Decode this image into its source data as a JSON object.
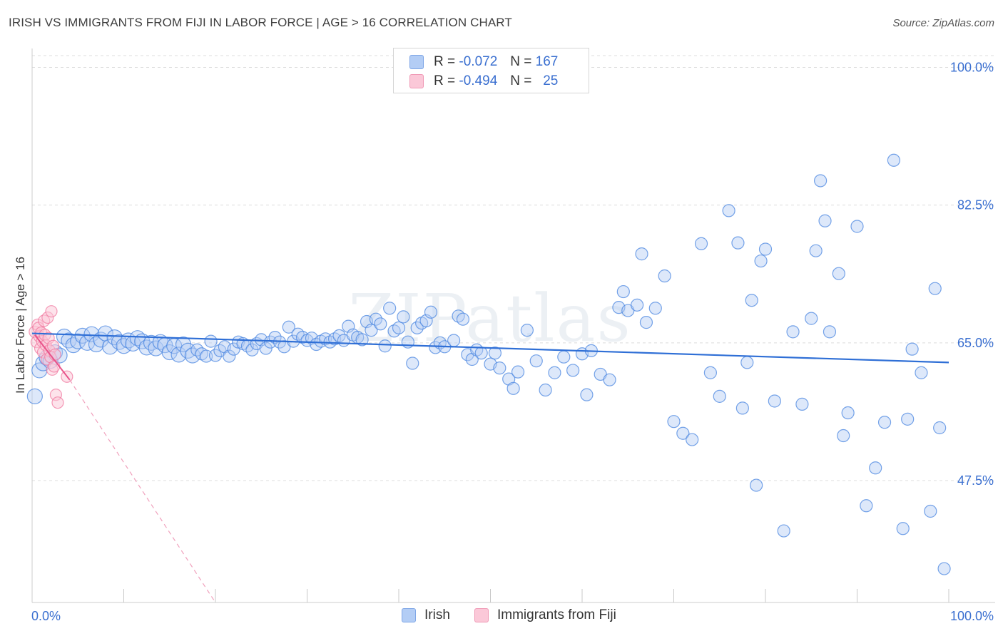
{
  "title": "IRISH VS IMMIGRANTS FROM FIJI IN LABOR FORCE | AGE > 16 CORRELATION CHART",
  "source": "Source: ZipAtlas.com",
  "watermark": "ZIPatlas",
  "legend": {
    "rows": [
      {
        "r_label": "R =",
        "r_value": "-0.072",
        "n_label": "N =",
        "n_value": "167"
      },
      {
        "r_label": "R =",
        "r_value": "-0.494",
        "n_label": "N =",
        "n_value": "25"
      }
    ]
  },
  "bottom_legend": [
    "Irish",
    "Immigrants from Fiji"
  ],
  "colors": {
    "irish": "#4a86e0",
    "irish_fill": "#b3cdf5",
    "fiji": "#f07aa0",
    "fiji_fill": "#fbc8d8",
    "tick_label": "#3a6fd0"
  },
  "chart_data": {
    "type": "scatter",
    "ylabel": "In Labor Force | Age > 16",
    "xlim": [
      0,
      100
    ],
    "ylim": [
      32.0,
      101.5
    ],
    "x_tick_labels": [
      {
        "value": 0,
        "label": "0.0%"
      },
      {
        "value": 100,
        "label": "100.0%"
      }
    ],
    "y_ticks": [
      {
        "value": 47.5,
        "label": "47.5%"
      },
      {
        "value": 65.0,
        "label": "65.0%"
      },
      {
        "value": 82.5,
        "label": "82.5%"
      },
      {
        "value": 100.0,
        "label": "100.0%"
      }
    ],
    "grid": "horizontal dashed",
    "series": [
      {
        "name": "Irish",
        "trend": {
          "x": [
            0,
            100
          ],
          "y": [
            66.2,
            62.5
          ]
        },
        "points": [
          [
            0.3,
            58.2
          ],
          [
            0.8,
            61.5
          ],
          [
            1.2,
            62.4
          ],
          [
            1.6,
            63.1
          ],
          [
            2.0,
            62.7
          ],
          [
            2.5,
            63.8
          ],
          [
            3.0,
            63.4
          ],
          [
            3.5,
            65.8
          ],
          [
            4.0,
            65.3
          ],
          [
            4.5,
            64.7
          ],
          [
            5.0,
            65.2
          ],
          [
            5.5,
            65.9
          ],
          [
            6.0,
            65.0
          ],
          [
            6.5,
            66.1
          ],
          [
            7.0,
            64.8
          ],
          [
            7.5,
            65.4
          ],
          [
            8.0,
            66.2
          ],
          [
            8.5,
            64.5
          ],
          [
            9.0,
            65.7
          ],
          [
            9.5,
            65.1
          ],
          [
            10.0,
            64.6
          ],
          [
            10.5,
            65.3
          ],
          [
            11.0,
            64.9
          ],
          [
            11.5,
            65.6
          ],
          [
            12.0,
            65.2
          ],
          [
            12.5,
            64.4
          ],
          [
            13.0,
            65.0
          ],
          [
            13.5,
            64.3
          ],
          [
            14.0,
            65.1
          ],
          [
            14.5,
            64.7
          ],
          [
            15.0,
            63.8
          ],
          [
            15.5,
            64.6
          ],
          [
            16.0,
            63.5
          ],
          [
            16.5,
            64.8
          ],
          [
            17.0,
            64.0
          ],
          [
            17.5,
            63.4
          ],
          [
            18.0,
            64.1
          ],
          [
            18.5,
            63.6
          ],
          [
            19.0,
            63.3
          ],
          [
            19.5,
            65.2
          ],
          [
            20.0,
            63.4
          ],
          [
            20.5,
            64.0
          ],
          [
            21.0,
            64.5
          ],
          [
            21.5,
            63.3
          ],
          [
            22.0,
            64.2
          ],
          [
            22.5,
            65.1
          ],
          [
            23.0,
            64.9
          ],
          [
            23.5,
            64.6
          ],
          [
            24.0,
            64.1
          ],
          [
            24.5,
            64.9
          ],
          [
            25.0,
            65.4
          ],
          [
            25.5,
            64.3
          ],
          [
            26.0,
            65.1
          ],
          [
            26.5,
            65.7
          ],
          [
            27.0,
            65.1
          ],
          [
            27.5,
            64.5
          ],
          [
            28.0,
            67.0
          ],
          [
            28.5,
            65.2
          ],
          [
            29.0,
            66.1
          ],
          [
            29.5,
            65.7
          ],
          [
            30.0,
            65.3
          ],
          [
            30.5,
            65.6
          ],
          [
            31.0,
            64.8
          ],
          [
            31.5,
            65.2
          ],
          [
            32.0,
            65.5
          ],
          [
            32.5,
            65.1
          ],
          [
            33.0,
            65.5
          ],
          [
            33.5,
            65.9
          ],
          [
            34.0,
            65.3
          ],
          [
            34.5,
            67.1
          ],
          [
            35.0,
            66.0
          ],
          [
            35.5,
            65.7
          ],
          [
            36.0,
            65.4
          ],
          [
            36.5,
            67.7
          ],
          [
            37.0,
            66.6
          ],
          [
            37.5,
            68.0
          ],
          [
            38.0,
            67.4
          ],
          [
            38.5,
            64.6
          ],
          [
            39.0,
            69.4
          ],
          [
            39.5,
            66.5
          ],
          [
            40.0,
            66.9
          ],
          [
            40.5,
            68.3
          ],
          [
            41.0,
            65.1
          ],
          [
            41.5,
            62.4
          ],
          [
            42.0,
            66.9
          ],
          [
            42.5,
            67.5
          ],
          [
            43.0,
            67.8
          ],
          [
            43.5,
            68.9
          ],
          [
            44.0,
            64.4
          ],
          [
            44.5,
            65.0
          ],
          [
            45.0,
            64.5
          ],
          [
            46.0,
            65.3
          ],
          [
            46.5,
            68.4
          ],
          [
            47.0,
            68.0
          ],
          [
            47.5,
            63.5
          ],
          [
            48.0,
            62.9
          ],
          [
            48.5,
            64.1
          ],
          [
            49.0,
            63.7
          ],
          [
            50.0,
            62.3
          ],
          [
            50.5,
            63.7
          ],
          [
            51.0,
            61.8
          ],
          [
            52.0,
            60.4
          ],
          [
            52.5,
            59.2
          ],
          [
            53.0,
            61.3
          ],
          [
            54.0,
            66.6
          ],
          [
            55.0,
            62.7
          ],
          [
            56.0,
            59.0
          ],
          [
            57.0,
            61.2
          ],
          [
            58.0,
            63.2
          ],
          [
            59.0,
            61.5
          ],
          [
            60.0,
            63.6
          ],
          [
            60.5,
            58.4
          ],
          [
            61.0,
            64.0
          ],
          [
            62.0,
            61.0
          ],
          [
            63.0,
            60.3
          ],
          [
            64.0,
            69.5
          ],
          [
            64.5,
            71.5
          ],
          [
            65.0,
            69.1
          ],
          [
            66.0,
            69.8
          ],
          [
            66.5,
            76.3
          ],
          [
            67.0,
            67.6
          ],
          [
            68.0,
            69.4
          ],
          [
            69.0,
            73.5
          ],
          [
            70.0,
            55.0
          ],
          [
            71.0,
            53.5
          ],
          [
            72.0,
            52.7
          ],
          [
            73.0,
            77.6
          ],
          [
            74.0,
            61.2
          ],
          [
            75.0,
            58.2
          ],
          [
            76.0,
            81.8
          ],
          [
            77.0,
            77.7
          ],
          [
            77.5,
            56.7
          ],
          [
            78.0,
            62.5
          ],
          [
            78.5,
            70.4
          ],
          [
            79.0,
            46.9
          ],
          [
            79.5,
            75.4
          ],
          [
            80.0,
            76.9
          ],
          [
            81.0,
            57.6
          ],
          [
            82.0,
            41.1
          ],
          [
            83.0,
            66.4
          ],
          [
            84.0,
            57.2
          ],
          [
            85.0,
            68.1
          ],
          [
            85.5,
            76.7
          ],
          [
            86.0,
            85.6
          ],
          [
            86.5,
            80.5
          ],
          [
            87.0,
            66.4
          ],
          [
            88.0,
            73.8
          ],
          [
            88.5,
            53.2
          ],
          [
            89.0,
            56.1
          ],
          [
            90.0,
            79.8
          ],
          [
            91.0,
            44.3
          ],
          [
            92.0,
            49.1
          ],
          [
            93.0,
            54.9
          ],
          [
            94.0,
            88.2
          ],
          [
            95.0,
            41.4
          ],
          [
            95.5,
            55.3
          ],
          [
            96.0,
            64.2
          ],
          [
            97.0,
            61.2
          ],
          [
            98.0,
            43.6
          ],
          [
            98.5,
            71.9
          ],
          [
            99.0,
            54.2
          ],
          [
            99.5,
            36.3
          ]
        ]
      },
      {
        "name": "Immigrants from Fiji",
        "trend": {
          "x": [
            0.3,
            4.1
          ],
          "y": [
            66.0,
            60.3
          ]
        },
        "trend_extended": {
          "x": [
            4.1,
            20.0
          ],
          "y": [
            60.3,
            32.0
          ]
        },
        "points": [
          [
            0.3,
            66.4
          ],
          [
            0.5,
            65.1
          ],
          [
            0.6,
            67.3
          ],
          [
            0.7,
            66.9
          ],
          [
            0.8,
            65.8
          ],
          [
            0.9,
            64.3
          ],
          [
            1.0,
            66.3
          ],
          [
            1.1,
            65.2
          ],
          [
            1.2,
            63.8
          ],
          [
            1.3,
            67.8
          ],
          [
            1.4,
            66.0
          ],
          [
            1.5,
            64.7
          ],
          [
            1.6,
            62.9
          ],
          [
            1.7,
            68.2
          ],
          [
            1.8,
            65.6
          ],
          [
            1.9,
            64.0
          ],
          [
            2.0,
            63.2
          ],
          [
            2.1,
            69.0
          ],
          [
            2.2,
            61.6
          ],
          [
            2.3,
            64.6
          ],
          [
            2.4,
            62.0
          ],
          [
            2.5,
            63.5
          ],
          [
            2.6,
            58.4
          ],
          [
            2.8,
            57.4
          ],
          [
            3.8,
            60.7
          ]
        ]
      }
    ]
  }
}
